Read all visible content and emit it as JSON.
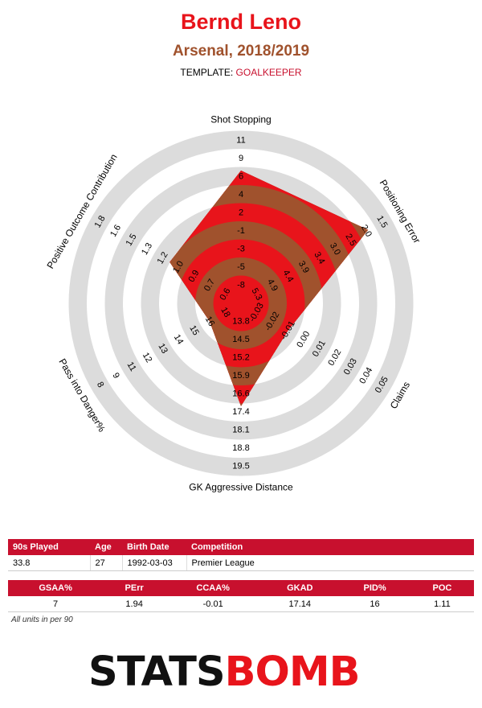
{
  "header": {
    "title": "Bernd Leno",
    "subtitle": "Arsenal, 2018/2019",
    "template_label": "TEMPLATE:",
    "template_value": "GOALKEEPER"
  },
  "colors": {
    "accent": "#e8141b",
    "brown": "#a0522d",
    "header_red": "#c8102e",
    "ring_grey": "#dcdcdc"
  },
  "chart_data": {
    "type": "radar",
    "axes": [
      {
        "label": "Shot Stopping",
        "ticks": [
          "-8",
          "-5",
          "-3",
          "-1",
          "2",
          "4",
          "6",
          "9",
          "11"
        ],
        "value": 7
      },
      {
        "label": "Positioning Error",
        "ticks": [
          "5.3",
          "4.9",
          "4.4",
          "3.9",
          "3.4",
          "3.0",
          "2.5",
          "2.0",
          "1.5"
        ],
        "value": 1.94
      },
      {
        "label": "Claims",
        "ticks": [
          "-0.03",
          "-0.02",
          "-0.01",
          "0.00",
          "0.01",
          "0.02",
          "0.03",
          "0.04",
          "0.05"
        ],
        "value": -0.01
      },
      {
        "label": "GK Aggressive Distance",
        "ticks": [
          "13.8",
          "14.5",
          "15.2",
          "15.9",
          "16.6",
          "17.4",
          "18.1",
          "18.8",
          "19.5"
        ],
        "value": 17.14
      },
      {
        "label": "Pass into Danger%",
        "ticks": [
          "18",
          "16",
          "15",
          "14",
          "13",
          "12",
          "11",
          "9",
          "8"
        ],
        "value": 16
      },
      {
        "label": "Positive Outcome Contribution",
        "ticks": [
          "0.6",
          "0.7",
          "0.9",
          "1.0",
          "1.2",
          "1.3",
          "1.5",
          "1.6",
          "1.8"
        ],
        "value": 1.11
      }
    ]
  },
  "info_table": {
    "headers": [
      "90s Played",
      "Age",
      "Birth Date",
      "Competition"
    ],
    "row": [
      "33.8",
      "27",
      "1992-03-03",
      "Premier League"
    ]
  },
  "stats_table": {
    "headers": [
      "GSAA%",
      "PErr",
      "CCAA%",
      "GKAD",
      "PID%",
      "POC"
    ],
    "row": [
      "7",
      "1.94",
      "-0.01",
      "17.14",
      "16",
      "1.11"
    ]
  },
  "footnote": "All units in per 90",
  "logo": {
    "part1": "STATS",
    "part2": "BOMB"
  }
}
